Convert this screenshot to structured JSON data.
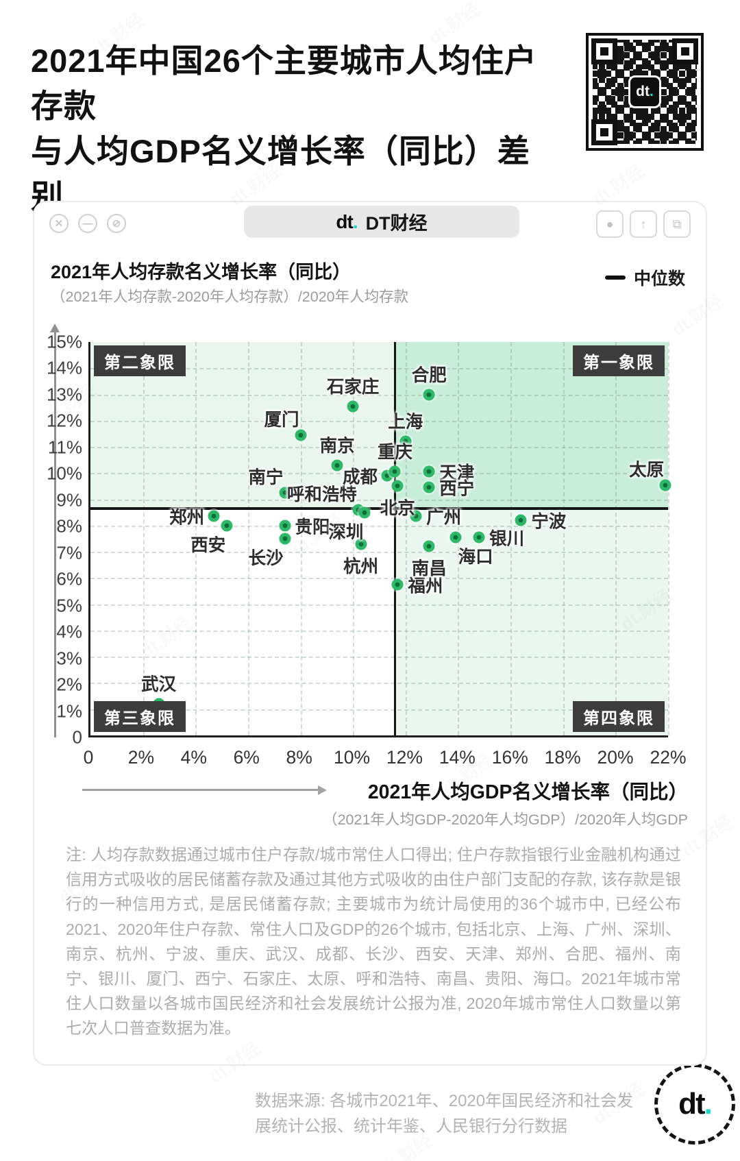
{
  "page": {
    "title_line1": "2021年中国26个主要城市人均住户存款",
    "title_line2": "与人均GDP名义增长率（同比）差别",
    "watermark": "dt.财经"
  },
  "window": {
    "controls": [
      {
        "name": "close",
        "glyph": "✕"
      },
      {
        "name": "minimize",
        "glyph": "—"
      },
      {
        "name": "block",
        "glyph": "⊘"
      }
    ],
    "tab": {
      "logo": "dt",
      "logo_dot": ".",
      "name": "DT财经"
    },
    "actions": [
      {
        "name": "record",
        "glyph": "●"
      },
      {
        "name": "share",
        "glyph": "↑"
      },
      {
        "name": "copy",
        "glyph": "⧉"
      }
    ]
  },
  "chart_header": {
    "y_title": "2021年人均存款名义增长率（同比）",
    "y_subtitle": "（2021年人均存款-2020年人均存款）/2020年人均存款",
    "legend_label": "中位数"
  },
  "x_axis_block": {
    "title": "2021年人均GDP名义增长率（同比）",
    "subtitle": "（2021年人均GDP-2020年人均GDP）/2020年人均GDP"
  },
  "quadrants": {
    "q1": "第一象限",
    "q2": "第二象限",
    "q3": "第三象限",
    "q4": "第四象限"
  },
  "note": "注: 人均存款数据通过城市住户存款/城市常住人口得出; 住户存款指银行业金融机构通过信用方式吸收的居民储蓄存款及通过其他方式吸收的由住户部门支配的存款, 该存款是银行的一种信用方式, 是居民储蓄存款; 主要城市为统计局使用的36个城市中, 已经公布2021、2020年住户存款、常住人口及GDP的26个城市, 包括北京、上海、广州、深圳、南京、杭州、宁波、重庆、武汉、成都、长沙、西安、天津、郑州、合肥、福州、南宁、银川、厦门、西宁、石家庄、太原、呼和浩特、南昌、贵阳、海口。2021年城市常住人口数量以各城市国民经济和社会发展统计公报为准, 2020年城市常住人口数量以第七次人口普查数据为准。",
  "footer": {
    "source": "数据来源: 各城市2021年、2020年国民经济和社会发展统计公报、统计年鉴、人民银行分行数据",
    "logo": "dt",
    "logo_dot": "."
  },
  "chart_data": {
    "type": "scatter",
    "title": "2021年中国26个主要城市人均住户存款与人均GDP名义增长率（同比）差别",
    "xlabel": "2021年人均GDP名义增长率（同比）",
    "ylabel": "2021年人均存款名义增长率（同比）",
    "xlim": [
      0,
      22
    ],
    "ylim": [
      0,
      15
    ],
    "x_tick_step": 2,
    "y_tick_step": 1,
    "x_ticks": [
      "0",
      "2%",
      "4%",
      "6%",
      "8%",
      "10%",
      "12%",
      "14%",
      "16%",
      "18%",
      "20%",
      "22%"
    ],
    "y_ticks": [
      "15%",
      "14%",
      "13%",
      "12%",
      "11%",
      "10%",
      "9%",
      "8%",
      "7%",
      "6%",
      "5%",
      "4%",
      "3%",
      "2%",
      "1%",
      "0"
    ],
    "grid": true,
    "legend": {
      "label": "中位数",
      "position": "top-right"
    },
    "median_x": 11.6,
    "median_y": 8.65,
    "points": [
      {
        "name": "武汉",
        "x": 2.6,
        "y": 1.2,
        "label_pos": "top"
      },
      {
        "name": "郑州",
        "x": 4.7,
        "y": 8.35,
        "label_pos": "left"
      },
      {
        "name": "西安",
        "x": 5.2,
        "y": 8.0,
        "label_pos": "bottom-left"
      },
      {
        "name": "南宁",
        "x": 7.4,
        "y": 9.25,
        "label_pos": "top-left"
      },
      {
        "name": "贵阳",
        "x": 7.4,
        "y": 8.0,
        "label_pos": "right"
      },
      {
        "name": "长沙",
        "x": 7.4,
        "y": 7.5,
        "label_pos": "bottom-left"
      },
      {
        "name": "厦门",
        "x": 8.0,
        "y": 11.45,
        "label_pos": "top-left"
      },
      {
        "name": "南京",
        "x": 9.4,
        "y": 10.3,
        "label_pos": "top"
      },
      {
        "name": "石家庄",
        "x": 10.0,
        "y": 12.55,
        "label_pos": "top"
      },
      {
        "name": "呼和浩特",
        "x": 10.2,
        "y": 8.6,
        "label_pos": "top-left"
      },
      {
        "name": "深圳",
        "x": 10.45,
        "y": 8.5,
        "label_pos": "bottom-left"
      },
      {
        "name": "杭州",
        "x": 10.3,
        "y": 7.3,
        "label_pos": "bottom"
      },
      {
        "name": "福州",
        "x": 11.7,
        "y": 5.75,
        "label_pos": "right"
      },
      {
        "name": "成都",
        "x": 11.3,
        "y": 9.9,
        "label_pos": "left"
      },
      {
        "name": "重庆",
        "x": 11.6,
        "y": 10.05,
        "label_pos": "top"
      },
      {
        "name": "北京",
        "x": 11.7,
        "y": 9.5,
        "label_pos": "bottom"
      },
      {
        "name": "上海",
        "x": 12.0,
        "y": 11.2,
        "label_pos": "top"
      },
      {
        "name": "天津",
        "x": 12.9,
        "y": 10.05,
        "label_pos": "right"
      },
      {
        "name": "西宁",
        "x": 12.9,
        "y": 9.45,
        "label_pos": "right"
      },
      {
        "name": "合肥",
        "x": 12.9,
        "y": 13.0,
        "label_pos": "top"
      },
      {
        "name": "广州",
        "x": 12.4,
        "y": 8.35,
        "label_pos": "right"
      },
      {
        "name": "南昌",
        "x": 12.9,
        "y": 7.2,
        "label_pos": "bottom"
      },
      {
        "name": "海口",
        "x": 13.9,
        "y": 7.55,
        "label_pos": "bottom-right"
      },
      {
        "name": "银川",
        "x": 14.8,
        "y": 7.55,
        "label_pos": "right"
      },
      {
        "name": "宁波",
        "x": 16.4,
        "y": 8.2,
        "label_pos": "right"
      },
      {
        "name": "太原",
        "x": 21.9,
        "y": 9.55,
        "label_pos": "top-left"
      }
    ],
    "colors": {
      "dot": "#2db968",
      "dot_core": "#0e6e38",
      "q1_bg": "#c8eeda",
      "q2_bg": "#e9f6ee",
      "q3_bg": "#ffffff",
      "q4_bg": "#eaf7f0",
      "median_line": "#151515",
      "badge_bg": "#3c3c3c"
    }
  }
}
